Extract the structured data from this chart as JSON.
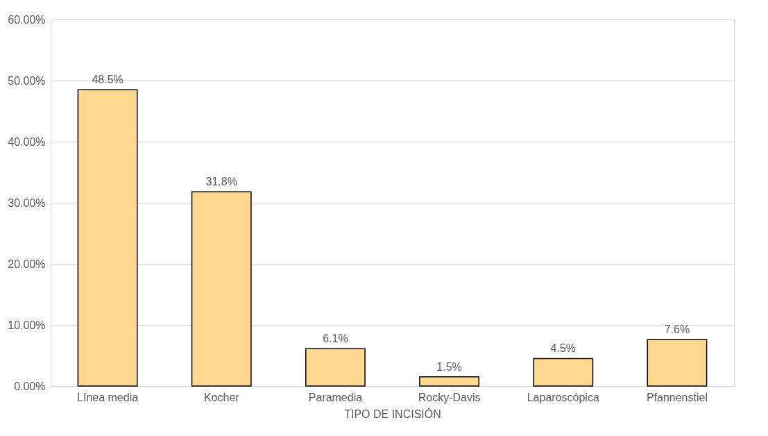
{
  "chart_data": {
    "type": "bar",
    "xlabel": "TIPO DE INCISIÓN",
    "categories": [
      "Línea media",
      "Kocher",
      "Paramedia",
      "Rocky-Davis",
      "Laparoscópica",
      "Pfannenstiel"
    ],
    "values": [
      48.5,
      31.8,
      6.1,
      1.5,
      4.5,
      7.6
    ],
    "value_labels": [
      "48.5%",
      "31.8%",
      "6.1%",
      "1.5%",
      "4.5%",
      "7.6%"
    ],
    "color": "#fed88f",
    "ylim": [
      0,
      60
    ],
    "yticks": [
      {
        "value": 0,
        "label": "0.00%"
      },
      {
        "value": 10,
        "label": "10.00%"
      },
      {
        "value": 20,
        "label": "20.00%"
      },
      {
        "value": 30,
        "label": "30.00%"
      },
      {
        "value": 40,
        "label": "40.00%"
      },
      {
        "value": 50,
        "label": "50.00%"
      },
      {
        "value": 60,
        "label": "60.00%"
      }
    ],
    "grid": "y"
  }
}
